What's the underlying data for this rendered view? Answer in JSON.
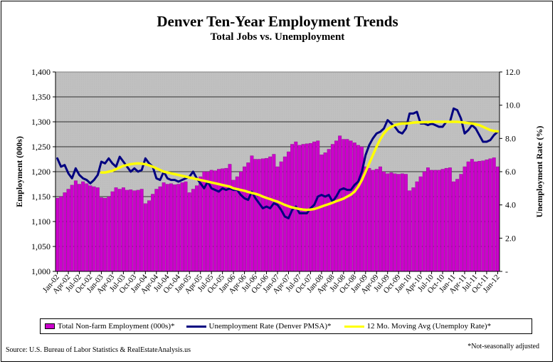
{
  "title": "Denver Ten-Year Employment Trends",
  "subtitle": "Total Jobs vs. Unemployment",
  "source": "Source: U.S. Bureau of Labor Statistics & RealEstateAnalysis.us",
  "footnote": "*Not-seasonally adjusted",
  "chart_data": {
    "type": "bar",
    "title": "Denver Ten-Year Employment Trends",
    "subtitle": "Total Jobs vs. Unemployment",
    "ylabel": "Employment (000s)",
    "y2label": "Unemployment Rate (%)",
    "ylim": [
      1000,
      1400
    ],
    "y2lim": [
      0,
      12
    ],
    "yticks": [
      "1,000",
      "1,050",
      "1,100",
      "1,150",
      "1,200",
      "1,250",
      "1,300",
      "1,350",
      "1,400"
    ],
    "y2ticks": [
      "-",
      "2.0",
      "4.0",
      "6.0",
      "8.0",
      "10.0",
      "12.0"
    ],
    "xticks": [
      "Jan-02",
      "Apr-02",
      "Jul-02",
      "Oct-02",
      "Jan-03",
      "Apr-03",
      "Jul-03",
      "Oct-03",
      "Jan-04",
      "Apr-04",
      "Jul-04",
      "Oct-04",
      "Jan-05",
      "Apr-05",
      "Jul-05",
      "Oct-05",
      "Jan-06",
      "Apr-06",
      "Jul-06",
      "Oct-06",
      "Jan-07",
      "Apr-07",
      "Jul-07",
      "Oct-07",
      "Jan-08",
      "Apr-08",
      "Jul-08",
      "Oct-08",
      "Jan-09",
      "Apr-09",
      "Jul-09",
      "Oct-09",
      "Jan-10",
      "Apr-10",
      "Jul-10",
      "Oct-10",
      "Jan-11",
      "Apr-11",
      "Jul-11",
      "Oct-11",
      "Jan-12"
    ],
    "grid": true,
    "legend_position": "bottom",
    "colors": {
      "bars": "#cc00cc",
      "unemployment": "#000080",
      "moving_avg": "#ffff00",
      "plot_bg": "#c0c0c0"
    },
    "series": [
      {
        "name": "Total Non-farm Employment (000s)*",
        "axis": "left",
        "type": "bar",
        "values": [
          1147,
          1150,
          1158,
          1165,
          1173,
          1182,
          1175,
          1180,
          1176,
          1172,
          1170,
          1168,
          1148,
          1147,
          1150,
          1160,
          1168,
          1165,
          1168,
          1163,
          1164,
          1162,
          1163,
          1165,
          1136,
          1142,
          1155,
          1165,
          1170,
          1178,
          1175,
          1176,
          1174,
          1175,
          1178,
          1180,
          1158,
          1165,
          1172,
          1190,
          1200,
          1200,
          1203,
          1202,
          1205,
          1206,
          1207,
          1215,
          1183,
          1190,
          1200,
          1210,
          1218,
          1232,
          1225,
          1225,
          1226,
          1227,
          1230,
          1235,
          1210,
          1220,
          1230,
          1240,
          1255,
          1260,
          1253,
          1255,
          1256,
          1257,
          1260,
          1262,
          1234,
          1238,
          1245,
          1255,
          1262,
          1272,
          1265,
          1265,
          1262,
          1258,
          1253,
          1250,
          1210,
          1207,
          1203,
          1205,
          1210,
          1200,
          1196,
          1198,
          1196,
          1195,
          1196,
          1195,
          1162,
          1168,
          1180,
          1190,
          1200,
          1208,
          1203,
          1203,
          1203,
          1205,
          1207,
          1208,
          1180,
          1185,
          1195,
          1210,
          1220,
          1225,
          1220,
          1221,
          1222,
          1224,
          1226,
          1228,
          1210
        ]
      },
      {
        "name": "Unemployment Rate (Denver PMSA)*",
        "axis": "right",
        "type": "line",
        "values": [
          6.8,
          6.3,
          6.4,
          5.9,
          5.6,
          6.2,
          5.8,
          5.6,
          5.5,
          5.3,
          5.5,
          5.8,
          6.6,
          6.5,
          6.8,
          6.5,
          6.3,
          6.9,
          6.6,
          6.3,
          6.0,
          6.2,
          6.0,
          6.1,
          6.8,
          6.5,
          6.3,
          5.6,
          5.5,
          6.0,
          5.6,
          5.5,
          5.5,
          5.4,
          5.5,
          5.6,
          5.7,
          6.0,
          5.6,
          5.3,
          5.0,
          5.4,
          5.0,
          4.9,
          4.8,
          5.0,
          4.9,
          5.0,
          4.9,
          4.9,
          4.6,
          4.4,
          4.3,
          4.8,
          4.4,
          4.1,
          3.8,
          3.9,
          3.8,
          4.1,
          4.0,
          3.7,
          3.3,
          3.2,
          3.7,
          3.9,
          3.5,
          3.5,
          3.5,
          3.8,
          4.0,
          4.5,
          4.6,
          4.5,
          4.6,
          4.2,
          4.5,
          4.9,
          5.0,
          4.9,
          4.9,
          5.2,
          5.4,
          6.0,
          7.0,
          7.6,
          8.0,
          8.3,
          8.4,
          8.6,
          9.1,
          8.9,
          8.7,
          8.4,
          8.3,
          8.6,
          9.5,
          9.5,
          9.6,
          8.9,
          8.9,
          8.8,
          8.9,
          8.8,
          8.7,
          8.7,
          9.0,
          9.0,
          9.8,
          9.7,
          9.2,
          8.3,
          8.5,
          8.8,
          8.6,
          8.2,
          7.8,
          7.8,
          7.9,
          8.2,
          8.4
        ]
      },
      {
        "name": "12 Mo. Moving Avg (Unemploy Rate)*",
        "axis": "right",
        "type": "line",
        "values": [
          null,
          null,
          null,
          null,
          null,
          null,
          null,
          null,
          null,
          null,
          null,
          null,
          5.95,
          5.95,
          6.0,
          6.05,
          6.15,
          6.25,
          6.35,
          6.4,
          6.45,
          6.48,
          6.5,
          6.48,
          6.45,
          6.38,
          6.3,
          6.2,
          6.1,
          6.0,
          5.95,
          5.9,
          5.85,
          5.8,
          5.75,
          5.7,
          5.65,
          5.6,
          5.55,
          5.5,
          5.45,
          5.4,
          5.35,
          5.3,
          5.25,
          5.2,
          5.15,
          5.1,
          5.0,
          4.95,
          4.9,
          4.85,
          4.78,
          4.72,
          4.67,
          4.6,
          4.5,
          4.42,
          4.35,
          4.27,
          4.2,
          4.1,
          4.0,
          3.92,
          3.85,
          3.8,
          3.75,
          3.72,
          3.7,
          3.72,
          3.75,
          3.82,
          3.9,
          3.98,
          4.05,
          4.13,
          4.22,
          4.3,
          4.38,
          4.5,
          4.62,
          4.8,
          5.1,
          5.5,
          6.0,
          6.5,
          7.0,
          7.5,
          7.95,
          8.3,
          8.55,
          8.7,
          8.8,
          8.86,
          8.9,
          8.9,
          8.92,
          8.95,
          8.97,
          8.97,
          8.98,
          8.98,
          9.0,
          9.0,
          9.0,
          9.0,
          9.0,
          9.0,
          9.0,
          9.0,
          8.98,
          8.95,
          8.92,
          8.9,
          8.85,
          8.8,
          8.7,
          8.6,
          8.5,
          8.45,
          8.42
        ]
      }
    ]
  }
}
